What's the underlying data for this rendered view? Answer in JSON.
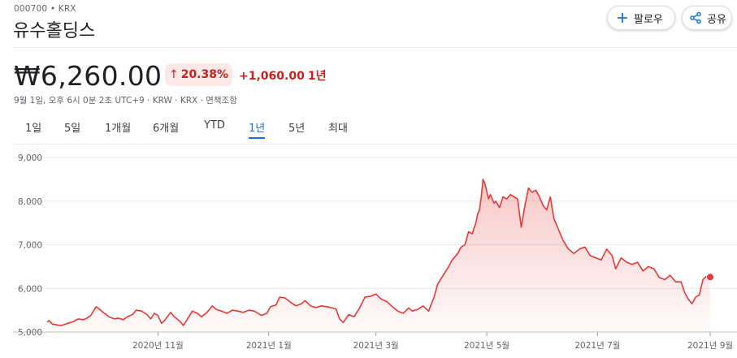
{
  "header": {
    "ticker": "000700 • KRX",
    "company": "유수홀딩스",
    "follow_label": "팔로우",
    "share_label": "공유"
  },
  "quote": {
    "price": "₩6,260.00",
    "pct_change": "20.38%",
    "abs_change": "+1,060.00",
    "period": "1년",
    "meta": "9월 1일, 오후 6시 0분 2초 UTC+9 · KRW · KRX · 면책조항",
    "accent_down_color": "#c5221f",
    "badge_bg": "#fce8e6"
  },
  "tabs": [
    {
      "label": "1일",
      "active": false
    },
    {
      "label": "5일",
      "active": false
    },
    {
      "label": "1개월",
      "active": false
    },
    {
      "label": "6개월",
      "active": false
    },
    {
      "label": "YTD",
      "active": false
    },
    {
      "label": "1년",
      "active": true
    },
    {
      "label": "5년",
      "active": false
    },
    {
      "label": "최대",
      "active": false
    }
  ],
  "icons": {
    "follow": "plus-icon",
    "share": "share-icon",
    "change": "arrow-up-icon"
  },
  "chart_data": {
    "type": "area",
    "line_color": "#e53935",
    "y_ticks": [
      {
        "value": 5000,
        "label": "5,000"
      },
      {
        "value": 6000,
        "label": "6,000"
      },
      {
        "value": 7000,
        "label": "7,000"
      },
      {
        "value": 8000,
        "label": "8,000"
      },
      {
        "value": 9000,
        "label": "9,000"
      }
    ],
    "ylim": [
      5000,
      9000
    ],
    "xlim": [
      "2020-09-01",
      "2021-09-01"
    ],
    "x_ticks": [
      {
        "date": "2020-11-01",
        "label": "2020년 11월"
      },
      {
        "date": "2021-01-01",
        "label": "2021년 1월"
      },
      {
        "date": "2021-03-01",
        "label": "2021년 3월"
      },
      {
        "date": "2021-05-01",
        "label": "2021년 5월"
      },
      {
        "date": "2021-07-01",
        "label": "2021년 7월"
      },
      {
        "date": "2021-09-01",
        "label": "2021년 9월"
      }
    ],
    "grid": "horizontal",
    "points": [
      [
        "2020-09-01",
        5230
      ],
      [
        "2020-09-02",
        5260
      ],
      [
        "2020-09-04",
        5180
      ],
      [
        "2020-09-07",
        5160
      ],
      [
        "2020-09-09",
        5150
      ],
      [
        "2020-09-11",
        5180
      ],
      [
        "2020-09-14",
        5220
      ],
      [
        "2020-09-16",
        5250
      ],
      [
        "2020-09-18",
        5300
      ],
      [
        "2020-09-21",
        5280
      ],
      [
        "2020-09-23",
        5320
      ],
      [
        "2020-09-25",
        5380
      ],
      [
        "2020-09-28",
        5580
      ],
      [
        "2020-10-01",
        5480
      ],
      [
        "2020-10-05",
        5350
      ],
      [
        "2020-10-08",
        5300
      ],
      [
        "2020-10-10",
        5320
      ],
      [
        "2020-10-13",
        5280
      ],
      [
        "2020-10-15",
        5350
      ],
      [
        "2020-10-18",
        5400
      ],
      [
        "2020-10-20",
        5500
      ],
      [
        "2020-10-23",
        5480
      ],
      [
        "2020-10-26",
        5400
      ],
      [
        "2020-10-28",
        5300
      ],
      [
        "2020-10-30",
        5430
      ],
      [
        "2020-11-01",
        5380
      ],
      [
        "2020-11-03",
        5200
      ],
      [
        "2020-11-05",
        5280
      ],
      [
        "2020-11-08",
        5450
      ],
      [
        "2020-11-10",
        5350
      ],
      [
        "2020-11-13",
        5250
      ],
      [
        "2020-11-15",
        5150
      ],
      [
        "2020-11-17",
        5280
      ],
      [
        "2020-11-20",
        5480
      ],
      [
        "2020-11-23",
        5420
      ],
      [
        "2020-11-25",
        5350
      ],
      [
        "2020-11-28",
        5450
      ],
      [
        "2020-12-01",
        5600
      ],
      [
        "2020-12-03",
        5520
      ],
      [
        "2020-12-06",
        5480
      ],
      [
        "2020-12-09",
        5430
      ],
      [
        "2020-12-12",
        5500
      ],
      [
        "2020-12-15",
        5480
      ],
      [
        "2020-12-18",
        5450
      ],
      [
        "2020-12-21",
        5500
      ],
      [
        "2020-12-24",
        5480
      ],
      [
        "2020-12-28",
        5380
      ],
      [
        "2020-12-31",
        5430
      ],
      [
        "2021-01-02",
        5580
      ],
      [
        "2021-01-05",
        5620
      ],
      [
        "2021-01-07",
        5800
      ],
      [
        "2021-01-10",
        5780
      ],
      [
        "2021-01-13",
        5680
      ],
      [
        "2021-01-16",
        5600
      ],
      [
        "2021-01-19",
        5650
      ],
      [
        "2021-01-21",
        5720
      ],
      [
        "2021-01-24",
        5600
      ],
      [
        "2021-01-27",
        5560
      ],
      [
        "2021-01-30",
        5600
      ],
      [
        "2021-02-02",
        5580
      ],
      [
        "2021-02-05",
        5550
      ],
      [
        "2021-02-07",
        5530
      ],
      [
        "2021-02-09",
        5300
      ],
      [
        "2021-02-11",
        5220
      ],
      [
        "2021-02-14",
        5400
      ],
      [
        "2021-02-17",
        5350
      ],
      [
        "2021-02-20",
        5550
      ],
      [
        "2021-02-23",
        5800
      ],
      [
        "2021-02-26",
        5820
      ],
      [
        "2021-03-01",
        5870
      ],
      [
        "2021-03-04",
        5750
      ],
      [
        "2021-03-07",
        5700
      ],
      [
        "2021-03-10",
        5580
      ],
      [
        "2021-03-13",
        5480
      ],
      [
        "2021-03-16",
        5430
      ],
      [
        "2021-03-19",
        5550
      ],
      [
        "2021-03-21",
        5480
      ],
      [
        "2021-03-24",
        5520
      ],
      [
        "2021-03-27",
        5600
      ],
      [
        "2021-03-30",
        5480
      ],
      [
        "2021-04-02",
        5800
      ],
      [
        "2021-04-04",
        6100
      ],
      [
        "2021-04-07",
        6300
      ],
      [
        "2021-04-10",
        6500
      ],
      [
        "2021-04-12",
        6650
      ],
      [
        "2021-04-15",
        6800
      ],
      [
        "2021-04-17",
        6950
      ],
      [
        "2021-04-19",
        7000
      ],
      [
        "2021-04-21",
        7300
      ],
      [
        "2021-04-23",
        7250
      ],
      [
        "2021-04-25",
        7500
      ],
      [
        "2021-04-26",
        7700
      ],
      [
        "2021-04-27",
        7800
      ],
      [
        "2021-04-28",
        8100
      ],
      [
        "2021-04-29",
        8500
      ],
      [
        "2021-04-30",
        8400
      ],
      [
        "2021-05-02",
        8050
      ],
      [
        "2021-05-03",
        8150
      ],
      [
        "2021-05-05",
        7950
      ],
      [
        "2021-05-06",
        8000
      ],
      [
        "2021-05-08",
        7850
      ],
      [
        "2021-05-10",
        8100
      ],
      [
        "2021-05-12",
        8050
      ],
      [
        "2021-05-14",
        8150
      ],
      [
        "2021-05-16",
        8100
      ],
      [
        "2021-05-18",
        8050
      ],
      [
        "2021-05-20",
        7400
      ],
      [
        "2021-05-22",
        7900
      ],
      [
        "2021-05-24",
        8300
      ],
      [
        "2021-05-26",
        8200
      ],
      [
        "2021-05-28",
        8250
      ],
      [
        "2021-05-30",
        8100
      ],
      [
        "2021-06-01",
        7900
      ],
      [
        "2021-06-03",
        7800
      ],
      [
        "2021-06-05",
        8100
      ],
      [
        "2021-06-07",
        7600
      ],
      [
        "2021-06-09",
        7400
      ],
      [
        "2021-06-12",
        7100
      ],
      [
        "2021-06-15",
        6900
      ],
      [
        "2021-06-18",
        6800
      ],
      [
        "2021-06-21",
        6900
      ],
      [
        "2021-06-24",
        6950
      ],
      [
        "2021-06-27",
        6750
      ],
      [
        "2021-06-30",
        6700
      ],
      [
        "2021-07-03",
        6650
      ],
      [
        "2021-07-06",
        6900
      ],
      [
        "2021-07-09",
        6750
      ],
      [
        "2021-07-11",
        6450
      ],
      [
        "2021-07-14",
        6700
      ],
      [
        "2021-07-17",
        6600
      ],
      [
        "2021-07-20",
        6550
      ],
      [
        "2021-07-23",
        6600
      ],
      [
        "2021-07-26",
        6400
      ],
      [
        "2021-07-29",
        6500
      ],
      [
        "2021-08-01",
        6450
      ],
      [
        "2021-08-04",
        6250
      ],
      [
        "2021-08-07",
        6200
      ],
      [
        "2021-08-10",
        6300
      ],
      [
        "2021-08-13",
        6150
      ],
      [
        "2021-08-16",
        6150
      ],
      [
        "2021-08-18",
        5900
      ],
      [
        "2021-08-20",
        5750
      ],
      [
        "2021-08-22",
        5650
      ],
      [
        "2021-08-24",
        5800
      ],
      [
        "2021-08-26",
        5850
      ],
      [
        "2021-08-28",
        6200
      ],
      [
        "2021-08-30",
        6280
      ],
      [
        "2021-09-01",
        6260
      ]
    ]
  }
}
